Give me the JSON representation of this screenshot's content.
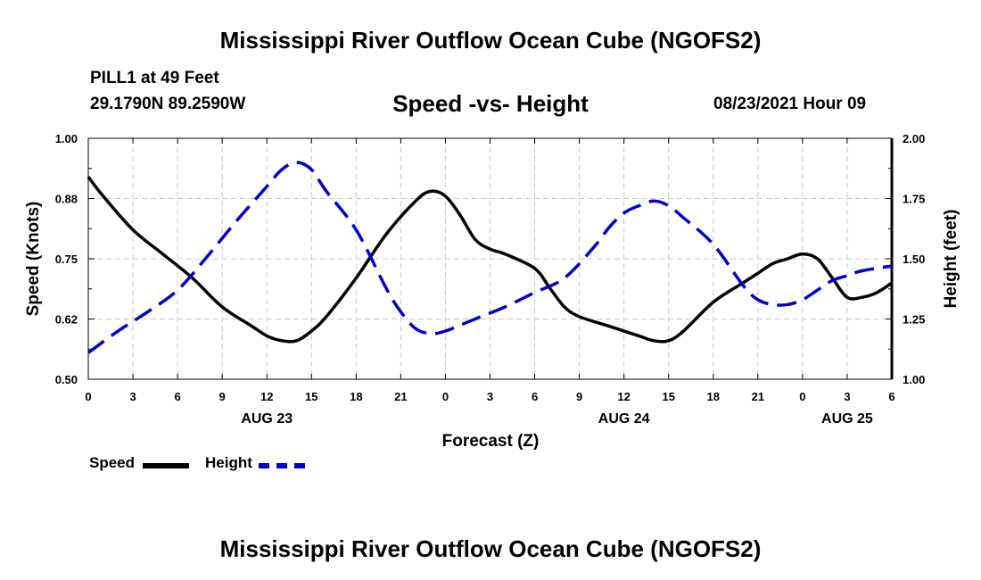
{
  "header": {
    "title": "Mississippi River Outflow Ocean Cube (NGOFS2)",
    "station": "PILL1 at 49 Feet",
    "coords": "29.1790N  89.2590W",
    "subtitle": "Speed -vs- Height",
    "datetime": "08/23/2021 Hour 09"
  },
  "footer": {
    "title": "Mississippi River Outflow Ocean Cube (NGOFS2)"
  },
  "legend": {
    "speed_label": "Speed",
    "height_label": "Height"
  },
  "colors": {
    "speed": "#000000",
    "height": "#0000cc",
    "grid": "#c8c8c8"
  },
  "chart_data": {
    "type": "line",
    "xlabel": "Forecast (Z)",
    "ylabel_left": "Speed (Knots)",
    "ylabel_right": "Height (feet)",
    "x_range_hours": [
      0,
      54
    ],
    "x_ticks": [
      {
        "h": 0,
        "label": "0"
      },
      {
        "h": 3,
        "label": "3"
      },
      {
        "h": 6,
        "label": "6"
      },
      {
        "h": 9,
        "label": "9"
      },
      {
        "h": 12,
        "label": "12"
      },
      {
        "h": 15,
        "label": "15"
      },
      {
        "h": 18,
        "label": "18"
      },
      {
        "h": 21,
        "label": "21"
      },
      {
        "h": 24,
        "label": "0"
      },
      {
        "h": 27,
        "label": "3"
      },
      {
        "h": 30,
        "label": "6"
      },
      {
        "h": 33,
        "label": "9"
      },
      {
        "h": 36,
        "label": "12"
      },
      {
        "h": 39,
        "label": "15"
      },
      {
        "h": 42,
        "label": "18"
      },
      {
        "h": 45,
        "label": "21"
      },
      {
        "h": 48,
        "label": "0"
      },
      {
        "h": 51,
        "label": "3"
      },
      {
        "h": 54,
        "label": "6"
      }
    ],
    "date_labels": [
      {
        "h": 12,
        "label": "AUG 23"
      },
      {
        "h": 36,
        "label": "AUG 24"
      },
      {
        "h": 51,
        "label": "AUG 25"
      }
    ],
    "left_axis": {
      "range": [
        0.5,
        1.0
      ],
      "ticks": [
        "0.50",
        "0.62",
        "0.75",
        "0.88",
        "1.00"
      ]
    },
    "right_axis": {
      "range": [
        1.0,
        2.0
      ],
      "ticks": [
        "1.00",
        "1.25",
        "1.50",
        "1.75",
        "2.00"
      ]
    },
    "grid": true,
    "series": [
      {
        "name": "Speed",
        "axis": "left",
        "style": "solid",
        "x": [
          0,
          1,
          3,
          5,
          7,
          9,
          11,
          12,
          13,
          14,
          15,
          16,
          18,
          20,
          22,
          23,
          24,
          25,
          26,
          27,
          28,
          30,
          31,
          32,
          33,
          35,
          37,
          38,
          39,
          40,
          42,
          44,
          45,
          46,
          47,
          48,
          49,
          50,
          51,
          52,
          53,
          54
        ],
        "y": [
          0.92,
          0.88,
          0.81,
          0.76,
          0.71,
          0.65,
          0.61,
          0.59,
          0.58,
          0.58,
          0.6,
          0.63,
          0.71,
          0.8,
          0.87,
          0.89,
          0.88,
          0.84,
          0.79,
          0.77,
          0.76,
          0.73,
          0.69,
          0.65,
          0.63,
          0.61,
          0.59,
          0.58,
          0.58,
          0.6,
          0.66,
          0.7,
          0.72,
          0.74,
          0.75,
          0.76,
          0.75,
          0.71,
          0.67,
          0.67,
          0.68,
          0.7
        ]
      },
      {
        "name": "Height",
        "axis": "right",
        "style": "dashed",
        "x": [
          0,
          2,
          4,
          6,
          8,
          10,
          12,
          13,
          14,
          15,
          16,
          18,
          20,
          21,
          22,
          23,
          24,
          26,
          28,
          30,
          32,
          34,
          35,
          36,
          37,
          38,
          39,
          40,
          42,
          44,
          45,
          46,
          47,
          48,
          49,
          50,
          51,
          52,
          54
        ],
        "y": [
          1.11,
          1.2,
          1.28,
          1.37,
          1.51,
          1.66,
          1.8,
          1.87,
          1.9,
          1.87,
          1.78,
          1.62,
          1.38,
          1.28,
          1.21,
          1.19,
          1.2,
          1.25,
          1.3,
          1.36,
          1.42,
          1.55,
          1.63,
          1.69,
          1.72,
          1.74,
          1.72,
          1.67,
          1.56,
          1.39,
          1.33,
          1.31,
          1.31,
          1.33,
          1.37,
          1.41,
          1.43,
          1.45,
          1.47
        ]
      }
    ]
  }
}
